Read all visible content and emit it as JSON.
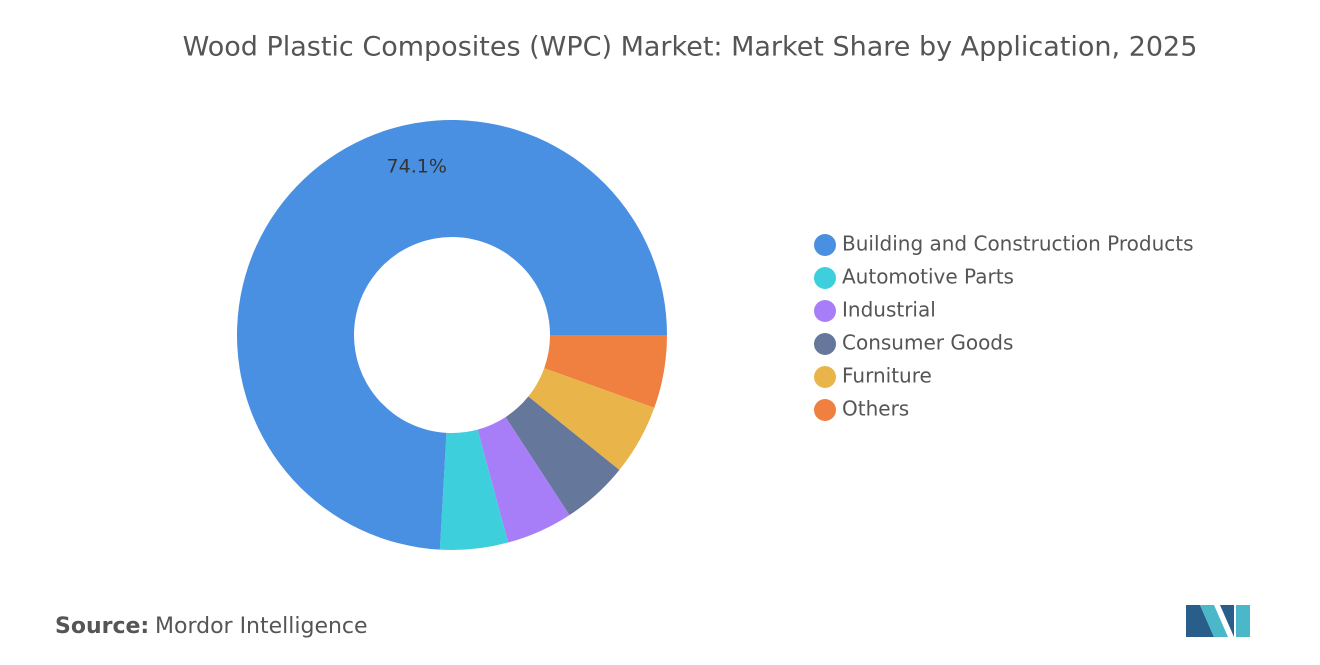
{
  "chart_data": {
    "type": "donut",
    "title": "Wood Plastic Composites (WPC) Market: Market Share by Application, 2025",
    "categories": [
      "Building and Construction Products",
      "Automotive Parts",
      "Industrial",
      "Consumer Goods",
      "Furniture",
      "Others"
    ],
    "values": [
      74.1,
      5.1,
      5.0,
      5.0,
      5.3,
      5.5
    ],
    "value_labels": [
      "74.1%",
      null,
      null,
      null,
      null,
      null
    ],
    "colors": [
      "#4a90e2",
      "#3ecfdc",
      "#a77ef7",
      "#65779a",
      "#e9b54a",
      "#f08040"
    ],
    "legend": "right",
    "source_label": "Source:",
    "source": "Mordor Intelligence"
  }
}
